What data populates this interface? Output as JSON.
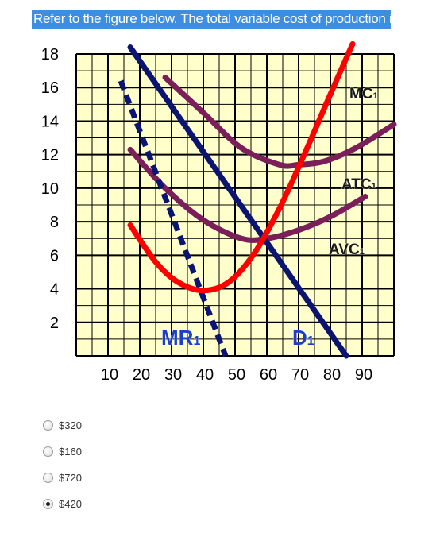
{
  "question": {
    "text": "Refer to the figure below. The total variable cost of production is:"
  },
  "chart_data": {
    "type": "line",
    "x_ticks": [
      "10",
      "20",
      "30",
      "40",
      "50",
      "60",
      "70",
      "80",
      "90"
    ],
    "y_ticks": [
      "2",
      "4",
      "6",
      "8",
      "10",
      "12",
      "14",
      "16",
      "18"
    ],
    "xlim": [
      0,
      100
    ],
    "ylim": [
      0,
      18
    ],
    "grid": true,
    "series": [
      {
        "name": "MC1",
        "label_main": "MC",
        "label_sub": "1",
        "color": "#ff0000",
        "x": [
          17,
          25,
          32,
          40,
          48,
          56,
          64,
          72,
          80,
          87
        ],
        "y": [
          7.8,
          5.6,
          4.4,
          3.9,
          4.4,
          6.1,
          8.8,
          12.1,
          15.6,
          18.6
        ]
      },
      {
        "name": "ATC1",
        "label_main": "ATC",
        "label_sub": "1",
        "color": "#7a1f5a",
        "x": [
          28,
          40,
          52,
          64,
          70,
          78,
          88,
          100
        ],
        "y": [
          16.6,
          14.5,
          12.4,
          11.4,
          11.4,
          11.6,
          12.4,
          13.8
        ]
      },
      {
        "name": "AVC1",
        "label_main": "AVC",
        "label_sub": "1",
        "color": "#7a1f5a",
        "x": [
          17,
          28,
          40,
          52,
          60,
          70,
          80,
          91
        ],
        "y": [
          12.3,
          10.0,
          8.1,
          7.0,
          7.0,
          7.5,
          8.3,
          9.5
        ]
      },
      {
        "name": "D1",
        "label_main": "D",
        "label_sub": "1",
        "color": "#0b1470",
        "x": [
          17,
          85
        ],
        "y": [
          18.4,
          0
        ]
      },
      {
        "name": "MR1",
        "label_main": "MR",
        "label_sub": "1",
        "color": "#0b1470",
        "dashed": true,
        "x": [
          14,
          47
        ],
        "y": [
          16.4,
          0
        ]
      }
    ]
  },
  "options": [
    {
      "label": "$320",
      "checked": false
    },
    {
      "label": "$160",
      "checked": false
    },
    {
      "label": "$720",
      "checked": false
    },
    {
      "label": "$420",
      "checked": true
    }
  ]
}
